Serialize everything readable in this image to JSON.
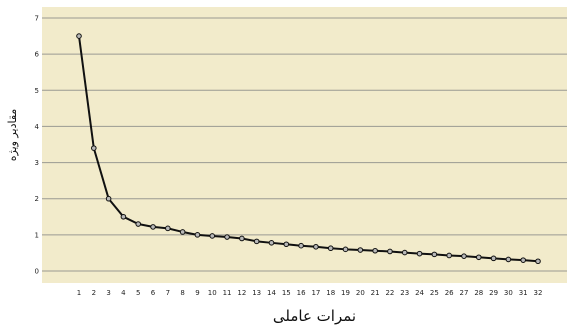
{
  "chart_data": {
    "type": "line",
    "title": "",
    "xlabel": "نمرات عاملی",
    "ylabel": "مقادیر ویژه",
    "x": [
      1,
      2,
      3,
      4,
      5,
      6,
      7,
      8,
      9,
      10,
      11,
      12,
      13,
      14,
      15,
      16,
      17,
      18,
      19,
      20,
      21,
      22,
      23,
      24,
      25,
      26,
      27,
      28,
      29,
      30,
      31,
      32
    ],
    "series": [
      {
        "values": [
          6.5,
          3.4,
          2.0,
          1.5,
          1.3,
          1.22,
          1.18,
          1.08,
          1.0,
          0.97,
          0.94,
          0.9,
          0.82,
          0.78,
          0.74,
          0.7,
          0.67,
          0.63,
          0.6,
          0.58,
          0.56,
          0.54,
          0.51,
          0.48,
          0.46,
          0.43,
          0.41,
          0.38,
          0.35,
          0.32,
          0.3,
          0.27
        ]
      }
    ],
    "ylim": [
      0,
      7
    ],
    "yticks": [
      0,
      1,
      2,
      3,
      4,
      5,
      6,
      7
    ],
    "grid": true,
    "colors": {
      "plot_background": "#f2ebcb",
      "grid": "#9a9a92",
      "line": "#111111",
      "marker_fill": "#b9b9b9"
    }
  }
}
